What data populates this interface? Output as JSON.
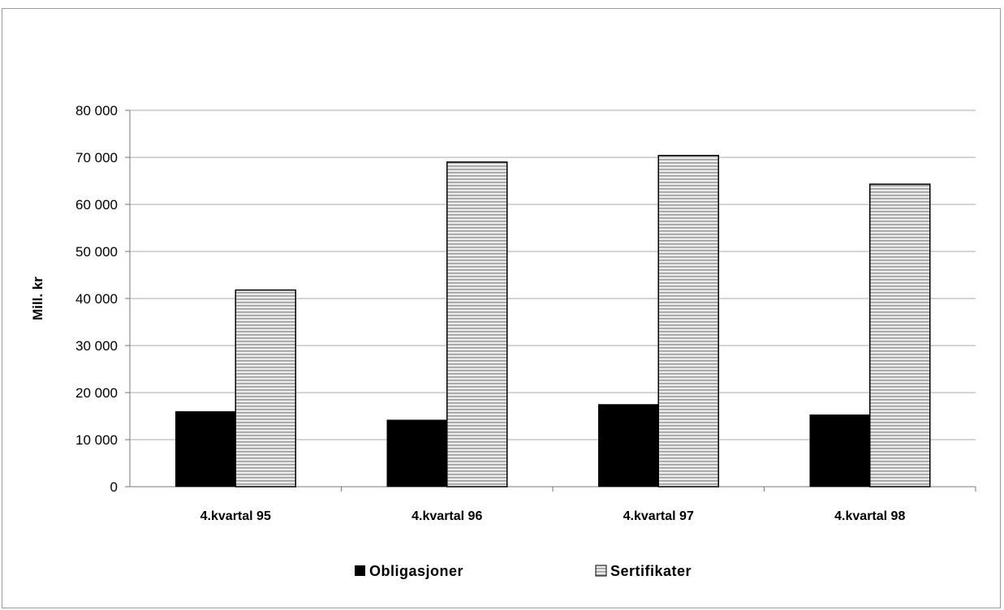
{
  "chart_data": {
    "type": "bar",
    "categories": [
      "4.kvartal 95",
      "4.kvartal 96",
      "4.kvartal 97",
      "4.kvartal 98"
    ],
    "series": [
      {
        "name": "Obligasjoner",
        "values": [
          16000,
          14200,
          17500,
          15300
        ],
        "color": "#000000"
      },
      {
        "name": "Sertifikater",
        "values": [
          41800,
          69000,
          70400,
          64300
        ],
        "color": "#c8c8c8"
      }
    ],
    "ylabel": "Mill. kr",
    "ylim": [
      0,
      80000
    ],
    "yticks": [
      0,
      10000,
      20000,
      30000,
      40000,
      50000,
      60000,
      70000,
      80000
    ],
    "ytick_labels": [
      "0",
      "10 000",
      "20 000",
      "30 000",
      "40 000",
      "50 000",
      "60 000",
      "70 000",
      "80 000"
    ],
    "grid": true,
    "legend_position": "bottom"
  }
}
